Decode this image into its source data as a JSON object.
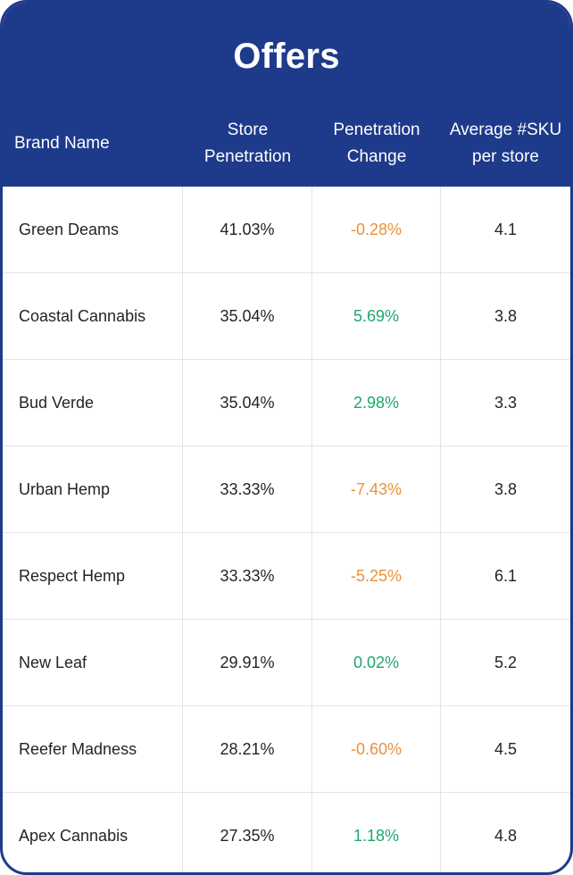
{
  "title": "Offers",
  "columns": {
    "brand": "Brand Name",
    "store_penetration_line1": "Store",
    "store_penetration_line2": "Penetration",
    "penetration_change_line1": "Penetration",
    "penetration_change_line2": "Change",
    "avg_sku_line1": "Average #SKU",
    "avg_sku_line2": "per store"
  },
  "colors": {
    "header_bg": "#1e3a8a",
    "positive": "#1ea76d",
    "negative": "#e8923a"
  },
  "rows": [
    {
      "brand": "Green Deams",
      "store_penetration": "41.03%",
      "penetration_change": "-0.28%",
      "trend": "negative",
      "avg_sku": "4.1"
    },
    {
      "brand": "Coastal Cannabis",
      "store_penetration": "35.04%",
      "penetration_change": "5.69%",
      "trend": "positive",
      "avg_sku": "3.8"
    },
    {
      "brand": "Bud Verde",
      "store_penetration": "35.04%",
      "penetration_change": "2.98%",
      "trend": "positive",
      "avg_sku": "3.3"
    },
    {
      "brand": "Urban Hemp",
      "store_penetration": "33.33%",
      "penetration_change": "-7.43%",
      "trend": "negative",
      "avg_sku": "3.8"
    },
    {
      "brand": "Respect Hemp",
      "store_penetration": "33.33%",
      "penetration_change": "-5.25%",
      "trend": "negative",
      "avg_sku": "6.1"
    },
    {
      "brand": "New Leaf",
      "store_penetration": "29.91%",
      "penetration_change": "0.02%",
      "trend": "positive",
      "avg_sku": "5.2"
    },
    {
      "brand": "Reefer Madness",
      "store_penetration": "28.21%",
      "penetration_change": "-0.60%",
      "trend": "negative",
      "avg_sku": "4.5"
    },
    {
      "brand": "Apex Cannabis",
      "store_penetration": "27.35%",
      "penetration_change": "1.18%",
      "trend": "positive",
      "avg_sku": "4.8"
    }
  ]
}
